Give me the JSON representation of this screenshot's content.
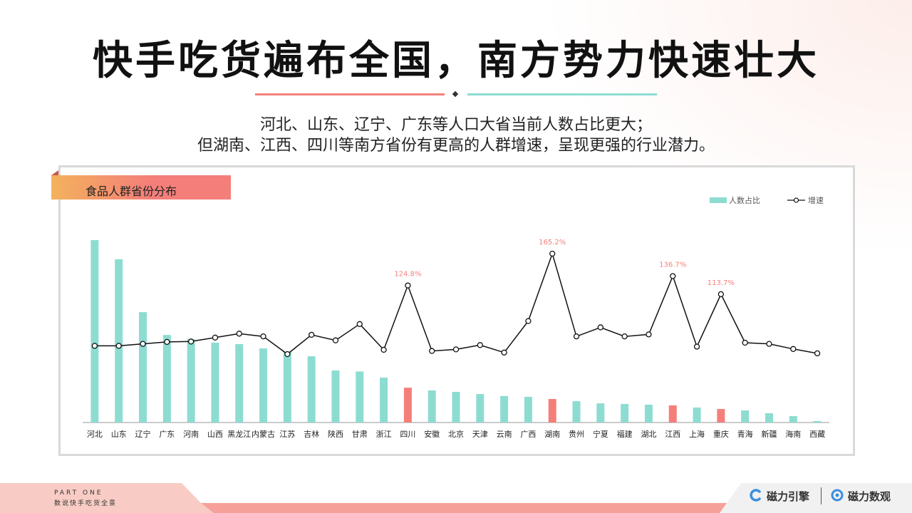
{
  "header": {
    "title": "快手吃货遍布全国，南方势力快速壮大",
    "subtitle_line1": "河北、山东、辽宁、广东等人口大省当前人数占比更大；",
    "subtitle_line2": "但湖南、江西、四川等南方省份有更高的人群增速，呈现更强的行业潜力。"
  },
  "panel": {
    "tab_label": "食品人群省份分布"
  },
  "footer": {
    "part": "PART ONE",
    "part_sub": "数说快手吃货全景",
    "brand1": "磁力引擎",
    "brand2": "磁力数观"
  },
  "colors": {
    "bar_normal": "#8ddcd2",
    "bar_highlight": "#f47f7a",
    "line": "#111111",
    "annotation": "#f47f7a",
    "rule_left": "#f47f7a",
    "rule_right": "#8ddcd2"
  },
  "chart_data": {
    "type": "bar+line",
    "title": "食品人群省份分布",
    "legend_position": "top-right",
    "grid": false,
    "categories": [
      "河北",
      "山东",
      "辽宁",
      "广东",
      "河南",
      "山西",
      "黑龙江",
      "内蒙古",
      "江苏",
      "吉林",
      "陕西",
      "甘肃",
      "浙江",
      "四川",
      "安徽",
      "北京",
      "天津",
      "云南",
      "广西",
      "湖南",
      "贵州",
      "宁夏",
      "福建",
      "湖北",
      "江西",
      "上海",
      "重庆",
      "青海",
      "新疆",
      "海南",
      "西藏"
    ],
    "highlight": [
      "四川",
      "湖南",
      "江西",
      "重庆"
    ],
    "series": [
      {
        "name": "人数占比",
        "type": "bar",
        "values": [
          100,
          89.5,
          60.5,
          48,
          45.7,
          43.8,
          43,
          40.6,
          38.7,
          36.3,
          28.5,
          28,
          24.6,
          19.1,
          17.6,
          16.8,
          15.6,
          14.5,
          14.1,
          12.9,
          11.7,
          10.5,
          10.2,
          9.8,
          9.4,
          8.2,
          7.4,
          6.6,
          5.1,
          3.5,
          0.8
        ]
      },
      {
        "name": "增速",
        "type": "line",
        "values": [
          48,
          48,
          50.5,
          53,
          53.5,
          58.5,
          63.5,
          60,
          37.5,
          62,
          55,
          75.7,
          43,
          124.8,
          41.5,
          43.5,
          49,
          39.5,
          79.5,
          165.2,
          60,
          71.5,
          60,
          62.5,
          136.7,
          47,
          113.7,
          52,
          50.5,
          44,
          38.5
        ]
      }
    ],
    "annotations": [
      {
        "category": "四川",
        "text": "124.8%"
      },
      {
        "category": "湖南",
        "text": "165.2%"
      },
      {
        "category": "江西",
        "text": "136.7%"
      },
      {
        "category": "重庆",
        "text": "113.7%"
      }
    ]
  }
}
